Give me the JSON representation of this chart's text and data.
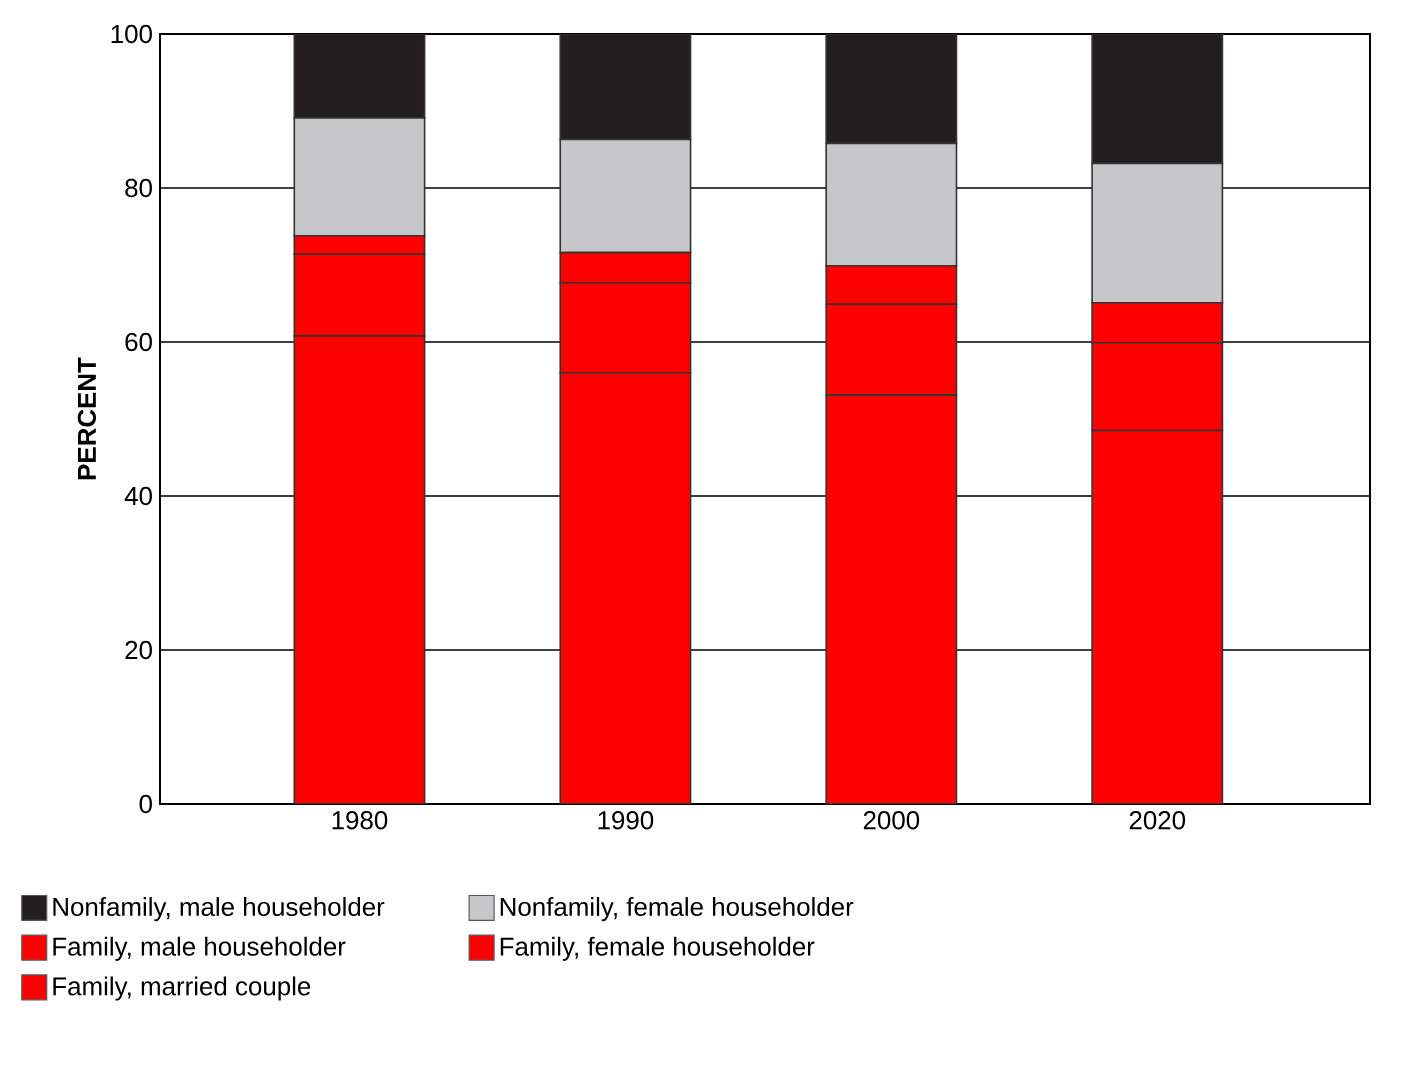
{
  "chart_data": {
    "type": "bar",
    "stacked": true,
    "ylabel": "PERCENT",
    "categories": [
      "1980",
      "1990",
      "2000",
      "2020"
    ],
    "series": [
      {
        "name": "Family, married couple",
        "color": "#ff0000",
        "values": [
          60.8,
          56.0,
          53.1,
          48.5
        ]
      },
      {
        "name": "Family, female householder",
        "color": "#ff0000",
        "values": [
          10.6,
          11.7,
          11.8,
          11.4
        ]
      },
      {
        "name": "Family, male householder",
        "color": "#ff0000",
        "values": [
          2.4,
          3.9,
          5.0,
          5.2
        ]
      },
      {
        "name": "Nonfamily, female householder",
        "color": "#c6c7c9",
        "values": [
          15.3,
          14.7,
          15.9,
          18.1
        ]
      },
      {
        "name": "Nonfamily, male householder",
        "color": "#231f20",
        "values": [
          10.9,
          13.7,
          14.2,
          16.8
        ]
      }
    ],
    "ylim": [
      0,
      100
    ],
    "yticks": [
      0,
      20,
      40,
      60,
      80,
      100
    ],
    "grid": "y",
    "legend": "bottom"
  }
}
